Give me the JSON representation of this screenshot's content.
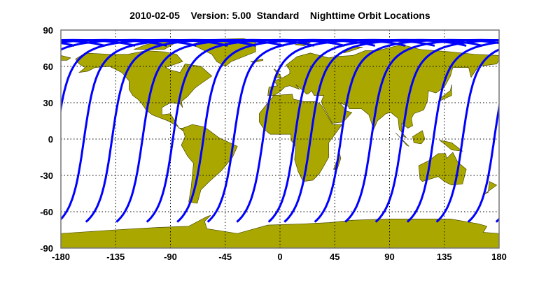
{
  "chart_data": {
    "type": "map",
    "title": "2010-02-05    Version: 5.00  Standard    Nighttime Orbit Locations",
    "xlim": [
      -180,
      180
    ],
    "ylim": [
      -90,
      90
    ],
    "xticks": [
      -180,
      -135,
      -90,
      -45,
      0,
      45,
      90,
      135,
      180
    ],
    "yticks": [
      90,
      60,
      30,
      0,
      -30,
      -60,
      -90
    ],
    "grid": true,
    "colors": {
      "land": "#aaa800",
      "coast": "#4a4a00",
      "track": "#0000ff",
      "frame": "#777777"
    },
    "orbit_equator_crossing_lons": [
      -161,
      -138,
      -113,
      -88,
      -63,
      -38,
      -14,
      12,
      25,
      50,
      75,
      100,
      126,
      150,
      176
    ],
    "orbit_inclination_deg": 98.2,
    "land": [
      {
        "name": "north-america",
        "pts": [
          [
            -168,
            66
          ],
          [
            -160,
            71
          ],
          [
            -140,
            70
          ],
          [
            -125,
            70
          ],
          [
            -110,
            73
          ],
          [
            -95,
            72
          ],
          [
            -85,
            70
          ],
          [
            -80,
            64
          ],
          [
            -94,
            59
          ],
          [
            -90,
            57
          ],
          [
            -82,
            55
          ],
          [
            -78,
            62
          ],
          [
            -65,
            60
          ],
          [
            -56,
            52
          ],
          [
            -66,
            45
          ],
          [
            -70,
            42
          ],
          [
            -76,
            35
          ],
          [
            -81,
            31
          ],
          [
            -80,
            26
          ],
          [
            -82,
            29
          ],
          [
            -90,
            30
          ],
          [
            -97,
            26
          ],
          [
            -97,
            20
          ],
          [
            -90,
            21
          ],
          [
            -87,
            16
          ],
          [
            -83,
            9
          ],
          [
            -79,
            9
          ],
          [
            -80,
            7
          ],
          [
            -85,
            11
          ],
          [
            -92,
            15
          ],
          [
            -105,
            20
          ],
          [
            -110,
            24
          ],
          [
            -114,
            30
          ],
          [
            -117,
            33
          ],
          [
            -121,
            36
          ],
          [
            -124,
            41
          ],
          [
            -124,
            48
          ],
          [
            -130,
            55
          ],
          [
            -140,
            60
          ],
          [
            -152,
            59
          ],
          [
            -158,
            56
          ],
          [
            -165,
            55
          ],
          [
            -160,
            59
          ],
          [
            -165,
            62
          ]
        ]
      },
      {
        "name": "greenland",
        "pts": [
          [
            -73,
            78
          ],
          [
            -60,
            82
          ],
          [
            -30,
            83
          ],
          [
            -20,
            80
          ],
          [
            -20,
            72
          ],
          [
            -40,
            64
          ],
          [
            -45,
            60
          ],
          [
            -52,
            64
          ],
          [
            -56,
            70
          ],
          [
            -68,
            76
          ]
        ]
      },
      {
        "name": "arctic-islands",
        "pts": [
          [
            -120,
            74
          ],
          [
            -95,
            74
          ],
          [
            -85,
            80
          ],
          [
            -70,
            82
          ],
          [
            -90,
            82
          ],
          [
            -110,
            78
          ]
        ]
      },
      {
        "name": "south-america",
        "pts": [
          [
            -80,
            9
          ],
          [
            -72,
            12
          ],
          [
            -62,
            10
          ],
          [
            -50,
            1
          ],
          [
            -35,
            -6
          ],
          [
            -39,
            -15
          ],
          [
            -48,
            -26
          ],
          [
            -58,
            -35
          ],
          [
            -65,
            -42
          ],
          [
            -68,
            -53
          ],
          [
            -75,
            -52
          ],
          [
            -73,
            -40
          ],
          [
            -71,
            -20
          ],
          [
            -76,
            -14
          ],
          [
            -81,
            -5
          ],
          [
            -78,
            2
          ]
        ]
      },
      {
        "name": "eurasia",
        "pts": [
          [
            -10,
            36
          ],
          [
            -9,
            43
          ],
          [
            -2,
            44
          ],
          [
            -5,
            48
          ],
          [
            3,
            51
          ],
          [
            8,
            54
          ],
          [
            8,
            57
          ],
          [
            5,
            61
          ],
          [
            14,
            68
          ],
          [
            25,
            71
          ],
          [
            40,
            67
          ],
          [
            45,
            68
          ],
          [
            60,
            69
          ],
          [
            70,
            73
          ],
          [
            80,
            73
          ],
          [
            100,
            78
          ],
          [
            115,
            74
          ],
          [
            140,
            72
          ],
          [
            160,
            70
          ],
          [
            180,
            69
          ],
          [
            180,
            65
          ],
          [
            178,
            62
          ],
          [
            163,
            60
          ],
          [
            157,
            51
          ],
          [
            155,
            59
          ],
          [
            142,
            59
          ],
          [
            140,
            52
          ],
          [
            135,
            43
          ],
          [
            128,
            38
          ],
          [
            122,
            40
          ],
          [
            121,
            31
          ],
          [
            118,
            24
          ],
          [
            110,
            21
          ],
          [
            108,
            17
          ],
          [
            109,
            11
          ],
          [
            105,
            9
          ],
          [
            100,
            13
          ],
          [
            100,
            3
          ],
          [
            104,
            1
          ],
          [
            98,
            8
          ],
          [
            97,
            17
          ],
          [
            91,
            22
          ],
          [
            87,
            21
          ],
          [
            80,
            15
          ],
          [
            77,
            8
          ],
          [
            73,
            20
          ],
          [
            67,
            25
          ],
          [
            57,
            25
          ],
          [
            56,
            27
          ],
          [
            49,
            30
          ],
          [
            55,
            23
          ],
          [
            59,
            22
          ],
          [
            52,
            14
          ],
          [
            43,
            13
          ],
          [
            35,
            28
          ],
          [
            34,
            31
          ],
          [
            36,
            36
          ],
          [
            28,
            36
          ],
          [
            26,
            40
          ],
          [
            24,
            38
          ],
          [
            22,
            37
          ],
          [
            19,
            40
          ],
          [
            13,
            45
          ],
          [
            16,
            41
          ],
          [
            11,
            43
          ],
          [
            8,
            44
          ],
          [
            4,
            43
          ],
          [
            0,
            39
          ],
          [
            -5,
            36
          ]
        ]
      },
      {
        "name": "chukotka-west",
        "pts": [
          [
            -180,
            69
          ],
          [
            -172,
            67
          ],
          [
            -175,
            65
          ],
          [
            -180,
            65
          ]
        ]
      },
      {
        "name": "africa",
        "pts": [
          [
            -17,
            21
          ],
          [
            -10,
            30
          ],
          [
            -5,
            36
          ],
          [
            10,
            37
          ],
          [
            11,
            33
          ],
          [
            20,
            31
          ],
          [
            30,
            31
          ],
          [
            34,
            28
          ],
          [
            43,
            12
          ],
          [
            51,
            12
          ],
          [
            40,
            -3
          ],
          [
            40,
            -15
          ],
          [
            35,
            -24
          ],
          [
            32,
            -29
          ],
          [
            27,
            -34
          ],
          [
            19,
            -35
          ],
          [
            15,
            -27
          ],
          [
            12,
            -17
          ],
          [
            13,
            -6
          ],
          [
            9,
            -1
          ],
          [
            9,
            4
          ],
          [
            -8,
            4
          ],
          [
            -13,
            8
          ],
          [
            -17,
            14
          ]
        ]
      },
      {
        "name": "australia",
        "pts": [
          [
            114,
            -22
          ],
          [
            122,
            -18
          ],
          [
            130,
            -12
          ],
          [
            136,
            -12
          ],
          [
            137,
            -16
          ],
          [
            142,
            -11
          ],
          [
            146,
            -19
          ],
          [
            153,
            -25
          ],
          [
            150,
            -37
          ],
          [
            141,
            -38
          ],
          [
            135,
            -35
          ],
          [
            130,
            -31
          ],
          [
            117,
            -35
          ],
          [
            115,
            -33
          ]
        ]
      },
      {
        "name": "antarctica",
        "pts": [
          [
            -180,
            -78
          ],
          [
            -150,
            -76
          ],
          [
            -120,
            -74
          ],
          [
            -100,
            -73
          ],
          [
            -75,
            -72
          ],
          [
            -60,
            -64
          ],
          [
            -57,
            -63
          ],
          [
            -62,
            -68
          ],
          [
            -60,
            -74
          ],
          [
            -35,
            -78
          ],
          [
            -10,
            -71
          ],
          [
            20,
            -70
          ],
          [
            40,
            -69
          ],
          [
            60,
            -67
          ],
          [
            90,
            -66
          ],
          [
            120,
            -66
          ],
          [
            140,
            -66
          ],
          [
            163,
            -70
          ],
          [
            170,
            -72
          ],
          [
            167,
            -77
          ],
          [
            180,
            -78
          ],
          [
            180,
            -90
          ],
          [
            -180,
            -90
          ]
        ]
      },
      {
        "name": "borneo",
        "pts": [
          [
            109,
            2
          ],
          [
            117,
            7
          ],
          [
            119,
            0
          ],
          [
            116,
            -4
          ],
          [
            110,
            -3
          ]
        ]
      },
      {
        "name": "sumatra",
        "pts": [
          [
            95,
            5
          ],
          [
            106,
            -6
          ],
          [
            104,
            -5
          ],
          [
            98,
            2
          ]
        ]
      },
      {
        "name": "new-guinea",
        "pts": [
          [
            131,
            -1
          ],
          [
            141,
            -3
          ],
          [
            150,
            -10
          ],
          [
            141,
            -9
          ],
          [
            135,
            -4
          ]
        ]
      },
      {
        "name": "japan",
        "pts": [
          [
            130,
            31
          ],
          [
            141,
            36
          ],
          [
            141,
            45
          ],
          [
            140,
            40
          ],
          [
            132,
            34
          ]
        ]
      },
      {
        "name": "great-britain",
        "pts": [
          [
            -5,
            50
          ],
          [
            1,
            51
          ],
          [
            -2,
            56
          ],
          [
            -5,
            58
          ],
          [
            -3,
            55
          ]
        ]
      },
      {
        "name": "madagascar",
        "pts": [
          [
            44,
            -25
          ],
          [
            49,
            -12
          ],
          [
            50,
            -16
          ],
          [
            47,
            -25
          ]
        ]
      },
      {
        "name": "new-zealand",
        "pts": [
          [
            172,
            -35
          ],
          [
            178,
            -38
          ],
          [
            174,
            -41
          ],
          [
            167,
            -46
          ],
          [
            171,
            -44
          ]
        ]
      },
      {
        "name": "iceland",
        "pts": [
          [
            -24,
            64
          ],
          [
            -14,
            66
          ],
          [
            -14,
            65
          ],
          [
            -22,
            63
          ]
        ]
      },
      {
        "name": "svalbard",
        "pts": [
          [
            12,
            78
          ],
          [
            25,
            80
          ],
          [
            20,
            77
          ]
        ]
      },
      {
        "name": "novaya-zemlya",
        "pts": [
          [
            52,
            71
          ],
          [
            60,
            76
          ],
          [
            68,
            76
          ],
          [
            56,
            72
          ]
        ]
      },
      {
        "name": "severnaya-zemlya",
        "pts": [
          [
            95,
            78
          ],
          [
            105,
            80
          ],
          [
            100,
            81
          ]
        ]
      }
    ]
  }
}
